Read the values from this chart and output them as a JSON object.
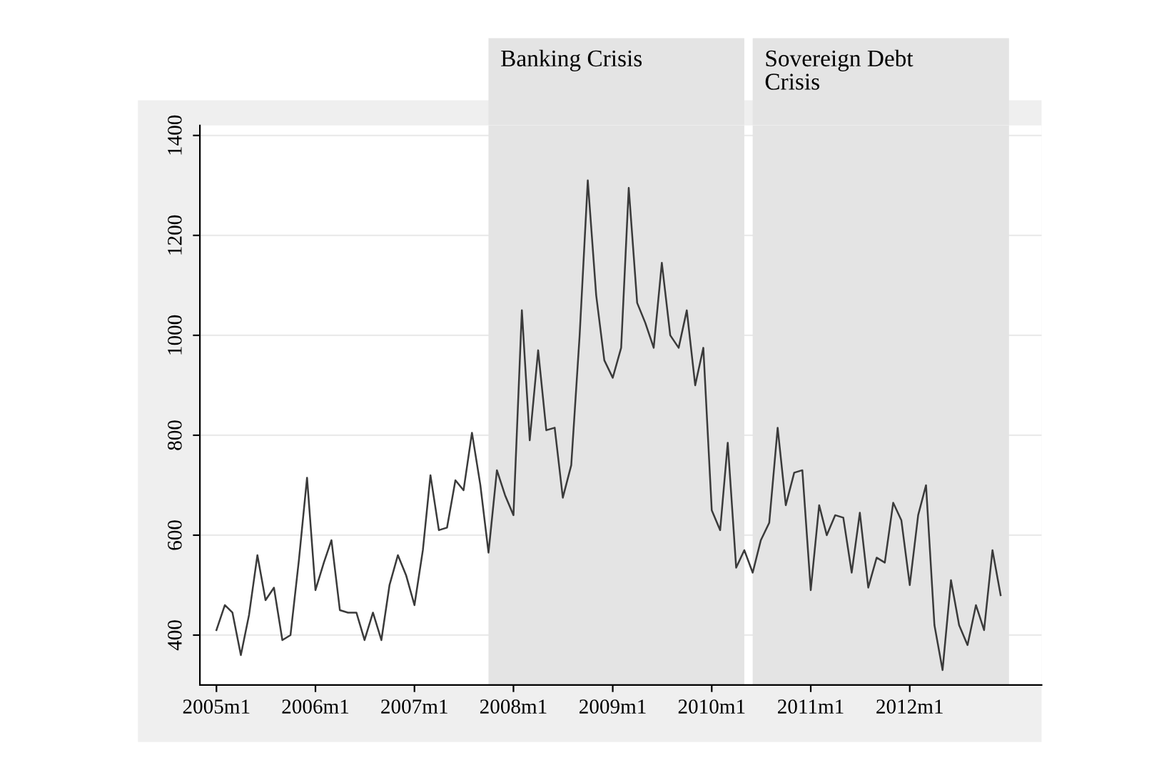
{
  "chart_data": {
    "type": "line",
    "x": [
      "2005-01",
      "2005-02",
      "2005-03",
      "2005-04",
      "2005-05",
      "2005-06",
      "2005-07",
      "2005-08",
      "2005-09",
      "2005-10",
      "2005-11",
      "2005-12",
      "2006-01",
      "2006-02",
      "2006-03",
      "2006-04",
      "2006-05",
      "2006-06",
      "2006-07",
      "2006-08",
      "2006-09",
      "2006-10",
      "2006-11",
      "2006-12",
      "2007-01",
      "2007-02",
      "2007-03",
      "2007-04",
      "2007-05",
      "2007-06",
      "2007-07",
      "2007-08",
      "2007-09",
      "2007-10",
      "2007-11",
      "2007-12",
      "2008-01",
      "2008-02",
      "2008-03",
      "2008-04",
      "2008-05",
      "2008-06",
      "2008-07",
      "2008-08",
      "2008-09",
      "2008-10",
      "2008-11",
      "2008-12",
      "2009-01",
      "2009-02",
      "2009-03",
      "2009-04",
      "2009-05",
      "2009-06",
      "2009-07",
      "2009-08",
      "2009-09",
      "2009-10",
      "2009-11",
      "2009-12",
      "2010-01",
      "2010-02",
      "2010-03",
      "2010-04",
      "2010-05",
      "2010-06",
      "2010-07",
      "2010-08",
      "2010-09",
      "2010-10",
      "2010-11",
      "2010-12",
      "2011-01",
      "2011-02",
      "2011-03",
      "2011-04",
      "2011-05",
      "2011-06",
      "2011-07",
      "2011-08",
      "2011-09",
      "2011-10",
      "2011-11",
      "2011-12",
      "2012-01",
      "2012-02",
      "2012-03",
      "2012-04",
      "2012-05",
      "2012-06",
      "2012-07",
      "2012-08",
      "2012-09",
      "2012-10",
      "2012-11",
      "2012-12"
    ],
    "series": [
      {
        "color": "#3a3a3a",
        "values": [
          410,
          460,
          445,
          360,
          440,
          560,
          470,
          495,
          390,
          400,
          550,
          715,
          490,
          545,
          590,
          450,
          445,
          445,
          390,
          445,
          390,
          500,
          560,
          520,
          460,
          570,
          720,
          610,
          615,
          710,
          690,
          805,
          700,
          565,
          730,
          680,
          640,
          1050,
          790,
          970,
          810,
          815,
          675,
          740,
          1000,
          1310,
          1080,
          950,
          915,
          975,
          1295,
          1065,
          1025,
          975,
          1145,
          1000,
          975,
          1050,
          900,
          975,
          650,
          610,
          785,
          535,
          570,
          525,
          590,
          625,
          815,
          660,
          725,
          730,
          490,
          660,
          600,
          640,
          635,
          525,
          645,
          495,
          555,
          545,
          665,
          630,
          500,
          640,
          700,
          420,
          330,
          510,
          420,
          380,
          460,
          410,
          570,
          480
        ]
      }
    ],
    "xlim": [
      "2004-11",
      "2013-05"
    ],
    "xticks": [
      {
        "value": "2005-01",
        "label": "2005m1"
      },
      {
        "value": "2006-01",
        "label": "2006m1"
      },
      {
        "value": "2007-01",
        "label": "2007m1"
      },
      {
        "value": "2008-01",
        "label": "2008m1"
      },
      {
        "value": "2009-01",
        "label": "2009m1"
      },
      {
        "value": "2010-01",
        "label": "2010m1"
      },
      {
        "value": "2011-01",
        "label": "2011m1"
      },
      {
        "value": "2012-01",
        "label": "2012m1"
      }
    ],
    "ylim": [
      300,
      1420
    ],
    "yticks": [
      400,
      600,
      800,
      1000,
      1200,
      1400
    ],
    "grid": "y",
    "bands": [
      {
        "axis": "x",
        "from": "2007-10",
        "to": "2010-05",
        "label": "Banking Crisis",
        "color": "#e4e4e4"
      },
      {
        "axis": "x",
        "from": "2010-06",
        "to": "2013-01",
        "label": "Sovereign Debt\nCrisis",
        "color": "#e4e4e4"
      }
    ]
  }
}
